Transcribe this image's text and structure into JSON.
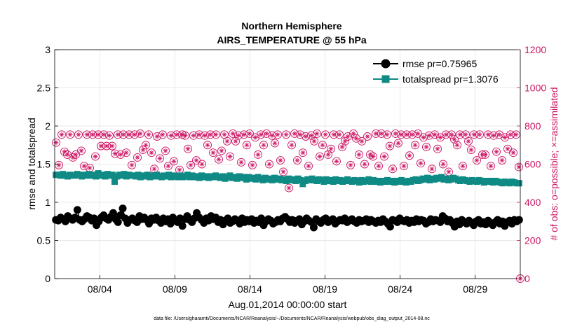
{
  "chart_data": {
    "type": "line",
    "title": [
      "Northern Hemisphere",
      "AIRS_TEMPERATURE @ 55 hPa"
    ],
    "xlabel": "Aug.01,2014 00:00:00 start",
    "ylabel_left": "rmse and totalspread",
    "ylabel_right": "# of obs: o=possible; ×=assimilated",
    "footnote": "data file: /Users/gharamti/Documents/NCAR/Reanalysis/~/Documents/NCAR/Reanalysis/webpub/obs_diag_output_2014-08.nc",
    "xlim": [
      1,
      32
    ],
    "ylim_left": [
      0,
      3
    ],
    "ylim_right": [
      0,
      1200
    ],
    "x_ticks": [
      {
        "value": 4,
        "label": "08/04"
      },
      {
        "value": 9,
        "label": "08/09"
      },
      {
        "value": 14,
        "label": "08/14"
      },
      {
        "value": 19,
        "label": "08/19"
      },
      {
        "value": 24,
        "label": "08/24"
      },
      {
        "value": 29,
        "label": "08/29"
      }
    ],
    "y_ticks_left": [
      "0",
      "0.5",
      "1",
      "1.5",
      "2",
      "2.5",
      "3"
    ],
    "y_ticks_right": [
      "0",
      "200",
      "400",
      "600",
      "800",
      "1000",
      "1200"
    ],
    "colors": {
      "rmse": "#000000",
      "spread": "#0f8a85",
      "obs": "#cc1463",
      "grid": "#e0e0e0"
    },
    "series": [
      {
        "name": "rmse pr=0.75965",
        "values": [
          0.77,
          0.76,
          0.8,
          0.78,
          0.75,
          0.82,
          0.79,
          0.77,
          0.8,
          0.9,
          0.77,
          0.75,
          0.78,
          0.82,
          0.8,
          0.76,
          0.79,
          0.7,
          0.75,
          0.8,
          0.83,
          0.79,
          0.77,
          0.81,
          0.86,
          0.78,
          0.74,
          0.83,
          0.92,
          0.79,
          0.73,
          0.77,
          0.79,
          0.76,
          0.74,
          0.82,
          0.78,
          0.8,
          0.77,
          0.72,
          0.79,
          0.77,
          0.8,
          0.76,
          0.73,
          0.79,
          0.75,
          0.78,
          0.72,
          0.8,
          0.76,
          0.74,
          0.79,
          0.69,
          0.78,
          0.82,
          0.77,
          0.74,
          0.79,
          0.86,
          0.8,
          0.77,
          0.73,
          0.79,
          0.76,
          0.82,
          0.78,
          0.8,
          0.74,
          0.77,
          0.71,
          0.76,
          0.79,
          0.73,
          0.75,
          0.78,
          0.76,
          0.72,
          0.79,
          0.74,
          0.77,
          0.75,
          0.78,
          0.73,
          0.76,
          0.74,
          0.79,
          0.7,
          0.75,
          0.78,
          0.76,
          0.72,
          0.74,
          0.77,
          0.75,
          0.79,
          0.81,
          0.78,
          0.74,
          0.77,
          0.73,
          0.76,
          0.78,
          0.71,
          0.75,
          0.79,
          0.76,
          0.74,
          0.67,
          0.78,
          0.75,
          0.73,
          0.77,
          0.79,
          0.74,
          0.76,
          0.78,
          0.72,
          0.75,
          0.77,
          0.76,
          0.79,
          0.74,
          0.76,
          0.78,
          0.75,
          0.73,
          0.77,
          0.75,
          0.76,
          0.78,
          0.74,
          0.77,
          0.75,
          0.73,
          0.76,
          0.74,
          0.78,
          0.75,
          0.72,
          0.68,
          0.77,
          0.76,
          0.74,
          0.79,
          0.76,
          0.75,
          0.77,
          0.73,
          0.76,
          0.74,
          0.78,
          0.75,
          0.77,
          0.76,
          0.72,
          0.74,
          0.78,
          0.75,
          0.77,
          0.76,
          0.74,
          0.82,
          0.79,
          0.75,
          0.77,
          0.73,
          0.68,
          0.75,
          0.71,
          0.77,
          0.74,
          0.72,
          0.76,
          0.73,
          0.7,
          0.75,
          0.77,
          0.72,
          0.74,
          0.71,
          0.76,
          0.73,
          0.7,
          0.74,
          0.77,
          0.72,
          0.75,
          0.69,
          0.74,
          0.76,
          0.72,
          0.77,
          0.75,
          0.77
        ]
      },
      {
        "name": "totalspread pr=1.3076",
        "values": [
          1.36,
          1.36,
          1.35,
          1.37,
          1.35,
          1.34,
          1.36,
          1.35,
          1.35,
          1.37,
          1.36,
          1.34,
          1.36,
          1.35,
          1.37,
          1.35,
          1.36,
          1.34,
          1.38,
          1.35,
          1.36,
          1.34,
          1.37,
          1.35,
          1.36,
          1.27,
          1.34,
          1.36,
          1.35,
          1.37,
          1.34,
          1.36,
          1.35,
          1.35,
          1.34,
          1.36,
          1.33,
          1.35,
          1.34,
          1.36,
          1.33,
          1.35,
          1.34,
          1.36,
          1.34,
          1.33,
          1.35,
          1.34,
          1.36,
          1.33,
          1.35,
          1.34,
          1.33,
          1.35,
          1.33,
          1.34,
          1.36,
          1.33,
          1.35,
          1.33,
          1.34,
          1.32,
          1.35,
          1.33,
          1.34,
          1.32,
          1.34,
          1.33,
          1.35,
          1.33,
          1.32,
          1.34,
          1.31,
          1.33,
          1.35,
          1.32,
          1.33,
          1.31,
          1.34,
          1.32,
          1.33,
          1.3,
          1.33,
          1.31,
          1.32,
          1.3,
          1.33,
          1.31,
          1.29,
          1.32,
          1.3,
          1.31,
          1.29,
          1.32,
          1.3,
          1.31,
          1.29,
          1.3,
          1.28,
          1.31,
          1.29,
          1.3,
          1.28,
          1.31,
          1.29,
          1.24,
          1.28,
          1.3,
          1.29,
          1.31,
          1.29,
          1.28,
          1.3,
          1.29,
          1.27,
          1.3,
          1.28,
          1.29,
          1.27,
          1.3,
          1.28,
          1.29,
          1.27,
          1.28,
          1.3,
          1.28,
          1.27,
          1.29,
          1.28,
          1.26,
          1.29,
          1.27,
          1.28,
          1.3,
          1.27,
          1.29,
          1.27,
          1.28,
          1.26,
          1.28,
          1.27,
          1.29,
          1.27,
          1.28,
          1.26,
          1.28,
          1.27,
          1.29,
          1.27,
          1.26,
          1.28,
          1.27,
          1.29,
          1.3,
          1.28,
          1.29,
          1.31,
          1.3,
          1.32,
          1.29,
          1.31,
          1.3,
          1.32,
          1.31,
          1.33,
          1.3,
          1.31,
          1.29,
          1.3,
          1.32,
          1.31,
          1.29,
          1.28,
          1.3,
          1.29,
          1.28,
          1.27,
          1.29,
          1.28,
          1.27,
          1.29,
          1.28,
          1.26,
          1.28,
          1.27,
          1.28,
          1.26,
          1.28,
          1.27,
          1.26,
          1.25,
          1.27,
          1.26,
          1.25,
          1.27,
          1.26,
          1.25,
          1.25
        ]
      },
      {
        "name": "# obs (possible / assimilated)",
        "axis": "right",
        "values": [
          713,
          595,
          755,
          665,
          650,
          755,
          635,
          650,
          755,
          670,
          590,
          755,
          580,
          755,
          640,
          755,
          695,
          755,
          695,
          750,
          695,
          655,
          755,
          650,
          755,
          660,
          755,
          595,
          755,
          635,
          760,
          675,
          700,
          755,
          660,
          575,
          745,
          630,
          755,
          670,
          590,
          750,
          615,
          755,
          570,
          755,
          750,
          680,
          595,
          750,
          620,
          755,
          600,
          750,
          700,
          755,
          660,
          755,
          625,
          670,
          755,
          720,
          640,
          760,
          720,
          750,
          610,
          755,
          700,
          760,
          595,
          740,
          650,
          755,
          700,
          760,
          600,
          750,
          710,
          755,
          620,
          560,
          755,
          475,
          700,
          760,
          620,
          755,
          660,
          745,
          590,
          750,
          720,
          760,
          640,
          700,
          755,
          650,
          680,
          755,
          615,
          755,
          690,
          720,
          745,
          595,
          760,
          735,
          650,
          720,
          600,
          745,
          650,
          640,
          760,
          590,
          760,
          640,
          755,
          695,
          575,
          760,
          710,
          755,
          590,
          755,
          645,
          755,
          700,
          760,
          605,
          740,
          690,
          750,
          575,
          755,
          680,
          740,
          600,
          755,
          560,
          755,
          730,
          700,
          755,
          590,
          755,
          720,
          675,
          755,
          620,
          755,
          650,
          650,
          755,
          590,
          750,
          665,
          755,
          620,
          740,
          680,
          755,
          660,
          755,
          585
        ]
      }
    ]
  }
}
